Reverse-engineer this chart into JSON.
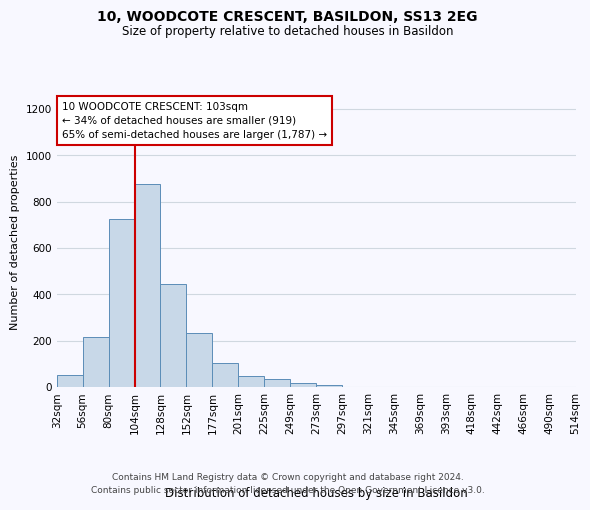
{
  "title": "10, WOODCOTE CRESCENT, BASILDON, SS13 2EG",
  "subtitle": "Size of property relative to detached houses in Basildon",
  "xlabel": "Distribution of detached houses by size in Basildon",
  "ylabel": "Number of detached properties",
  "bins": [
    "32sqm",
    "56sqm",
    "80sqm",
    "104sqm",
    "128sqm",
    "152sqm",
    "177sqm",
    "201sqm",
    "225sqm",
    "249sqm",
    "273sqm",
    "297sqm",
    "321sqm",
    "345sqm",
    "369sqm",
    "393sqm",
    "418sqm",
    "442sqm",
    "466sqm",
    "490sqm",
    "514sqm"
  ],
  "bar_heights": [
    52,
    217,
    727,
    878,
    445,
    233,
    103,
    48,
    37,
    18,
    10,
    0,
    0,
    0,
    0,
    0,
    0,
    0,
    0,
    0
  ],
  "bar_color": "#c8d8e8",
  "bar_edge_color": "#5b8db8",
  "property_line_x": 3,
  "property_line_color": "#cc0000",
  "annotation_line1": "10 WOODCOTE CRESCENT: 103sqm",
  "annotation_line2": "← 34% of detached houses are smaller (919)",
  "annotation_line3": "65% of semi-detached houses are larger (1,787) →",
  "annotation_box_color": "#ffffff",
  "annotation_box_edge_color": "#cc0000",
  "ylim": [
    0,
    1250
  ],
  "yticks": [
    0,
    200,
    400,
    600,
    800,
    1000,
    1200
  ],
  "footer_line1": "Contains HM Land Registry data © Crown copyright and database right 2024.",
  "footer_line2": "Contains public sector information licensed under the Open Government Licence v3.0.",
  "grid_color": "#d0d8e0",
  "background_color": "#f8f8ff",
  "title_fontsize": 10,
  "subtitle_fontsize": 8.5,
  "xlabel_fontsize": 8.5,
  "ylabel_fontsize": 8,
  "tick_fontsize": 7.5,
  "footer_fontsize": 6.5
}
